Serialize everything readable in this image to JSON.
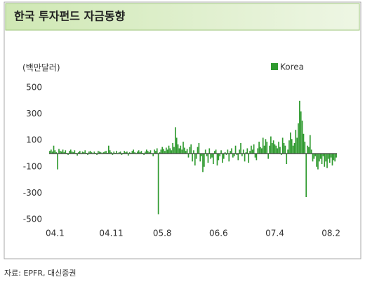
{
  "chart_data": {
    "type": "bar",
    "title": "한국 투자펀드 자금동향",
    "y_label": "(백만달러)",
    "source": "자료: EPFR, 대신증권",
    "categories": [
      null,
      null,
      null,
      null,
      "04.1",
      null,
      null,
      null,
      null,
      null,
      null,
      null,
      null,
      null,
      null,
      null,
      null,
      null,
      null,
      null,
      null,
      null,
      null,
      null,
      null,
      null,
      null,
      null,
      null,
      null,
      null,
      null,
      null,
      null,
      null,
      null,
      null,
      null,
      null,
      null,
      null,
      null,
      null,
      null,
      null,
      null,
      null,
      "04.11",
      null,
      null,
      null,
      null,
      null,
      null,
      null,
      null,
      null,
      null,
      null,
      null,
      null,
      null,
      null,
      null,
      null,
      null,
      null,
      null,
      null,
      null,
      null,
      null,
      null,
      null,
      null,
      null,
      null,
      null,
      null,
      null,
      null,
      null,
      null,
      null,
      null,
      null,
      "05.8",
      null,
      null,
      null,
      null,
      null,
      null,
      null,
      null,
      null,
      null,
      null,
      null,
      null,
      null,
      null,
      null,
      null,
      null,
      null,
      null,
      null,
      null,
      null,
      null,
      null,
      null,
      null,
      null,
      null,
      null,
      null,
      null,
      null,
      null,
      null,
      null,
      null,
      null,
      null,
      null,
      null,
      null,
      "06.6",
      null,
      null,
      null,
      null,
      null,
      null,
      null,
      null,
      null,
      null,
      null,
      null,
      null,
      null,
      null,
      null,
      null,
      null,
      null,
      null,
      null,
      null,
      null,
      null,
      null,
      null,
      null,
      null,
      null,
      null,
      null,
      null,
      null,
      null,
      null,
      null,
      null,
      null,
      null,
      null,
      null,
      null,
      "07.4",
      null,
      null,
      null,
      null,
      null,
      null,
      null,
      null,
      null,
      null,
      null,
      null,
      null,
      null,
      null,
      null,
      null,
      null,
      null,
      null,
      null,
      null,
      null,
      null,
      null,
      null,
      null,
      null,
      null,
      null,
      null,
      null,
      null,
      null,
      null,
      null,
      null,
      null,
      null,
      null,
      null,
      null,
      "08.2",
      null,
      null,
      null,
      null
    ],
    "series": [
      {
        "name": "Korea",
        "color": "#2f9a2f",
        "values": [
          20,
          30,
          15,
          60,
          25,
          10,
          -120,
          35,
          20,
          15,
          30,
          10,
          25,
          5,
          -10,
          20,
          30,
          15,
          10,
          25,
          5,
          -15,
          10,
          20,
          -5,
          15,
          10,
          25,
          5,
          -10,
          15,
          20,
          10,
          -5,
          15,
          5,
          -10,
          20,
          15,
          10,
          -5,
          10,
          15,
          20,
          5,
          60,
          25,
          10,
          -10,
          15,
          5,
          20,
          -5,
          10,
          15,
          -10,
          5,
          20,
          10,
          15,
          -15,
          10,
          5,
          20,
          30,
          10,
          -5,
          15,
          25,
          10,
          20,
          5,
          -10,
          15,
          30,
          20,
          10,
          25,
          -5,
          -20,
          30,
          20,
          40,
          -460,
          10,
          30,
          50,
          35,
          20,
          45,
          30,
          60,
          40,
          25,
          80,
          50,
          200,
          120,
          70,
          40,
          60,
          30,
          90,
          45,
          20,
          35,
          -30,
          50,
          70,
          -60,
          25,
          -90,
          -40,
          50,
          80,
          -60,
          -20,
          -140,
          -100,
          30,
          -20,
          -70,
          40,
          -40,
          -30,
          -80,
          20,
          30,
          -90,
          -50,
          -20,
          25,
          -70,
          -40,
          10,
          -10,
          30,
          -60,
          20,
          40,
          -30,
          -20,
          60,
          -10,
          -50,
          30,
          80,
          -20,
          30,
          -60,
          10,
          40,
          -70,
          20,
          60,
          30,
          70,
          -30,
          -50,
          40,
          90,
          50,
          40,
          120,
          60,
          110,
          90,
          -40,
          60,
          130,
          80,
          100,
          70,
          60,
          40,
          90,
          50,
          -10,
          120,
          80,
          60,
          -80,
          30,
          100,
          160,
          110,
          60,
          80,
          180,
          120,
          230,
          400,
          320,
          250,
          150,
          90,
          -330,
          60,
          50,
          140,
          30,
          -60,
          -40,
          -20,
          -100,
          -120,
          -60,
          -40,
          -80,
          -20,
          -100,
          -60,
          -110,
          -40,
          -70,
          -30,
          -90,
          -50,
          -60,
          -30
        ]
      }
    ],
    "ylim": [
      -500,
      500
    ],
    "yticks": [
      500,
      300,
      100,
      -100,
      -300,
      -500
    ],
    "legend": "top-right"
  }
}
